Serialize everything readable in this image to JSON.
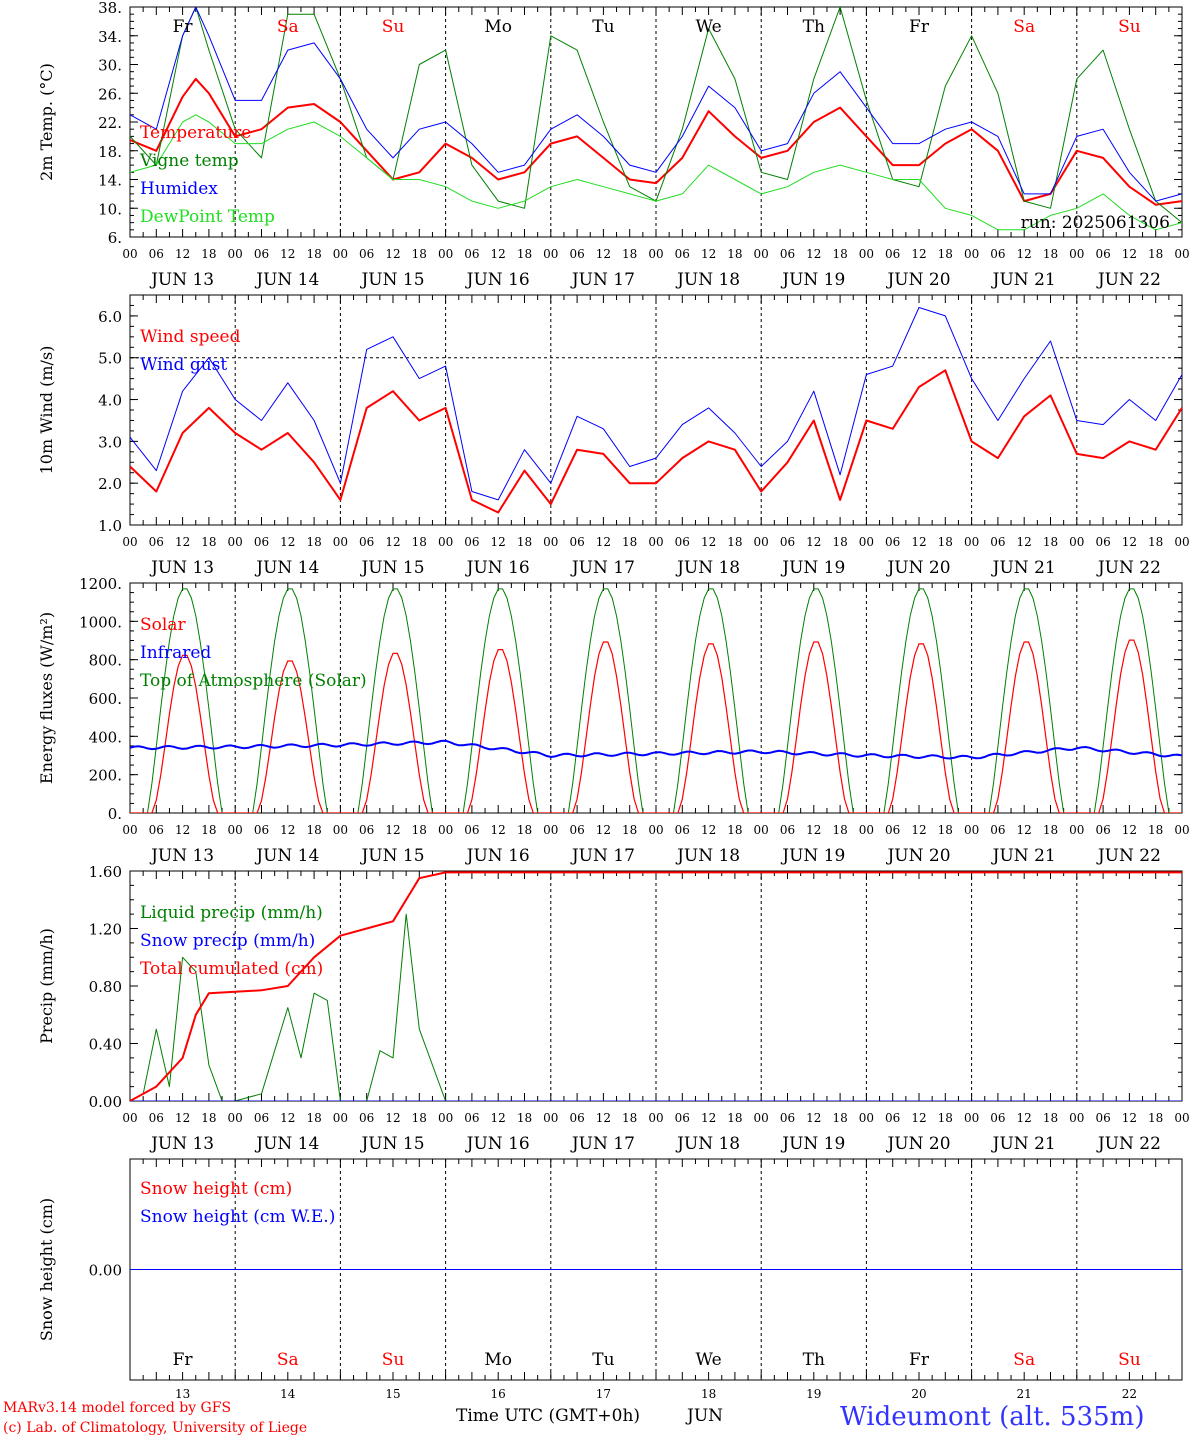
{
  "colors": {
    "red": "#ff0000",
    "green": "#008000",
    "blue": "#0000ff",
    "lime": "#22dd22",
    "black": "#000000"
  },
  "days": [
    {
      "abbr": "Fr",
      "weekend": false,
      "date": "JUN 13",
      "num": "13"
    },
    {
      "abbr": "Sa",
      "weekend": true,
      "date": "JUN 14",
      "num": "14"
    },
    {
      "abbr": "Su",
      "weekend": true,
      "date": "JUN 15",
      "num": "15"
    },
    {
      "abbr": "Mo",
      "weekend": false,
      "date": "JUN 16",
      "num": "16"
    },
    {
      "abbr": "Tu",
      "weekend": false,
      "date": "JUN 17",
      "num": "17"
    },
    {
      "abbr": "We",
      "weekend": false,
      "date": "JUN 18",
      "num": "18"
    },
    {
      "abbr": "Th",
      "weekend": false,
      "date": "JUN 19",
      "num": "19"
    },
    {
      "abbr": "Fr",
      "weekend": false,
      "date": "JUN 20",
      "num": "20"
    },
    {
      "abbr": "Sa",
      "weekend": true,
      "date": "JUN 21",
      "num": "21"
    },
    {
      "abbr": "Su",
      "weekend": true,
      "date": "JUN 22",
      "num": "22"
    }
  ],
  "hour_ticks": [
    "00",
    "06",
    "12",
    "18"
  ],
  "footer": {
    "credit1": "MARv3.14 model forced by GFS",
    "credit2": "(c) Lab. of Climatology, University of Liege",
    "xlabel": "Time UTC (GMT+0h)",
    "month": "JUN",
    "station": "Wideumont (alt. 535m)"
  },
  "chart_data": [
    {
      "type": "line",
      "ylabel": "2m Temp. (°C)",
      "ylim": [
        6,
        38
      ],
      "yticks": [
        "6.",
        "10.",
        "14.",
        "18.",
        "22.",
        "26.",
        "30.",
        "34.",
        "38."
      ],
      "run_label": "run: 2025061306",
      "x_unit": "hours since JUN 13 00 UTC",
      "series": [
        {
          "name": "Temperature",
          "color": "#ff0000",
          "width": 2,
          "x": [
            0,
            6,
            12,
            15,
            18,
            24,
            30,
            36,
            42,
            48,
            54,
            60,
            66,
            72,
            78,
            84,
            90,
            96,
            102,
            108,
            114,
            120,
            126,
            132,
            138,
            144,
            150,
            156,
            162,
            168,
            174,
            180,
            186,
            192,
            198,
            204,
            210,
            216,
            222,
            228,
            234,
            240
          ],
          "y": [
            19.5,
            18,
            25.5,
            28,
            26,
            20,
            21,
            24,
            24.5,
            22,
            18,
            14,
            15,
            19,
            17,
            14,
            15,
            19,
            20,
            17,
            14,
            13.5,
            17,
            23.5,
            20,
            17,
            18,
            22,
            24,
            20,
            16,
            16,
            19,
            21,
            18,
            11,
            12,
            18,
            17,
            13,
            10.5,
            11
          ]
        },
        {
          "name": "Vigne temp",
          "color": "#008000",
          "width": 1,
          "x": [
            0,
            6,
            12,
            15,
            18,
            24,
            30,
            36,
            42,
            48,
            54,
            60,
            66,
            72,
            78,
            84,
            90,
            96,
            102,
            108,
            114,
            120,
            126,
            132,
            138,
            144,
            150,
            156,
            162,
            168,
            174,
            180,
            186,
            192,
            198,
            204,
            210,
            216,
            222,
            228,
            234,
            240
          ],
          "y": [
            20,
            16,
            34,
            38,
            32,
            21,
            17,
            37,
            37,
            28,
            17,
            14,
            30,
            32,
            16,
            11,
            10,
            34,
            32,
            22,
            13,
            11,
            21,
            35,
            28,
            15,
            14,
            28,
            38,
            25,
            14,
            13,
            27,
            34,
            26,
            11,
            10,
            28,
            32,
            21,
            11,
            8
          ]
        },
        {
          "name": "Humidex",
          "color": "#0000ff",
          "width": 1,
          "x": [
            0,
            6,
            12,
            15,
            18,
            24,
            30,
            36,
            42,
            48,
            54,
            60,
            66,
            72,
            78,
            84,
            90,
            96,
            102,
            108,
            114,
            120,
            126,
            132,
            138,
            144,
            150,
            156,
            162,
            168,
            174,
            180,
            186,
            192,
            198,
            204,
            210,
            216,
            222,
            228,
            234,
            240
          ],
          "y": [
            23,
            21,
            34,
            38,
            34,
            25,
            25,
            32,
            33,
            28,
            21,
            17,
            21,
            22,
            19,
            15,
            16,
            21,
            23,
            20,
            16,
            15,
            20,
            27,
            24,
            18,
            19,
            26,
            29,
            24,
            19,
            19,
            21,
            22,
            20,
            12,
            12,
            20,
            21,
            15,
            11,
            12
          ]
        },
        {
          "name": "DewPoint Temp",
          "color": "#22dd22",
          "width": 1,
          "x": [
            0,
            6,
            12,
            15,
            18,
            24,
            30,
            36,
            42,
            48,
            54,
            60,
            66,
            72,
            78,
            84,
            90,
            96,
            102,
            108,
            114,
            120,
            126,
            132,
            138,
            144,
            150,
            156,
            162,
            168,
            174,
            180,
            186,
            192,
            198,
            204,
            210,
            216,
            222,
            228,
            234,
            240
          ],
          "y": [
            15,
            16,
            22,
            23,
            22,
            19,
            19,
            21,
            22,
            20,
            17,
            14,
            14,
            13,
            11,
            10,
            11,
            13,
            14,
            13,
            12,
            11,
            12,
            16,
            14,
            12,
            13,
            15,
            16,
            15,
            14,
            14,
            10,
            9,
            7,
            7,
            9,
            10,
            12,
            9,
            7,
            8
          ]
        }
      ]
    },
    {
      "type": "line",
      "ylabel": "10m Wind (m/s)",
      "ylim": [
        1,
        6.5
      ],
      "yticks": [
        "1.0",
        "2.0",
        "3.0",
        "4.0",
        "5.0",
        "6.0"
      ],
      "ref_line": 5.0,
      "x_unit": "hours since JUN 13 00 UTC",
      "series": [
        {
          "name": "Wind speed",
          "color": "#ff0000",
          "width": 2,
          "x": [
            0,
            6,
            12,
            18,
            24,
            30,
            36,
            42,
            48,
            54,
            60,
            66,
            72,
            78,
            84,
            90,
            96,
            102,
            108,
            114,
            120,
            126,
            132,
            138,
            144,
            150,
            156,
            162,
            168,
            174,
            180,
            186,
            192,
            198,
            204,
            210,
            216,
            222,
            228,
            234,
            240
          ],
          "y": [
            2.4,
            1.8,
            3.2,
            3.8,
            3.2,
            2.8,
            3.2,
            2.5,
            1.6,
            3.8,
            4.2,
            3.5,
            3.8,
            1.6,
            1.3,
            2.3,
            1.5,
            2.8,
            2.7,
            2.0,
            2.0,
            2.6,
            3.0,
            2.8,
            1.8,
            2.5,
            3.5,
            1.6,
            3.5,
            3.3,
            4.3,
            4.7,
            3.0,
            2.6,
            3.6,
            4.1,
            2.7,
            2.6,
            3.0,
            2.8,
            3.8
          ]
        },
        {
          "name": "Wind gust",
          "color": "#0000ff",
          "width": 1,
          "x": [
            0,
            6,
            12,
            18,
            24,
            30,
            36,
            42,
            48,
            54,
            60,
            66,
            72,
            78,
            84,
            90,
            96,
            102,
            108,
            114,
            120,
            126,
            132,
            138,
            144,
            150,
            156,
            162,
            168,
            174,
            180,
            186,
            192,
            198,
            204,
            210,
            216,
            222,
            228,
            234,
            240
          ],
          "y": [
            3.1,
            2.3,
            4.2,
            5.0,
            4.0,
            3.5,
            4.4,
            3.5,
            2.0,
            5.2,
            5.5,
            4.5,
            4.8,
            1.8,
            1.6,
            2.8,
            2.0,
            3.6,
            3.3,
            2.4,
            2.6,
            3.4,
            3.8,
            3.2,
            2.4,
            3.0,
            4.2,
            2.2,
            4.6,
            4.8,
            6.2,
            6.0,
            4.5,
            3.5,
            4.5,
            5.4,
            3.5,
            3.4,
            4.0,
            3.5,
            4.6
          ]
        }
      ]
    },
    {
      "type": "line",
      "ylabel": "Energy fluxes (W/m²)",
      "ylim": [
        0,
        1200
      ],
      "yticks": [
        "0.",
        "200.",
        "400.",
        "600.",
        "800.",
        "1000.",
        "1200."
      ],
      "solar_peaks": [
        830,
        800,
        840,
        860,
        900,
        890,
        900,
        890,
        900,
        910
      ],
      "toa_peak": 1175,
      "infrared": {
        "x": [
          0,
          24,
          48,
          72,
          96,
          120,
          144,
          168,
          192,
          216,
          240
        ],
        "y": [
          340,
          345,
          355,
          370,
          300,
          310,
          320,
          300,
          290,
          340,
          295
        ]
      },
      "x_unit": "hours since JUN 13 00 UTC",
      "series": [
        {
          "name": "Solar",
          "color": "#ff0000",
          "width": 1
        },
        {
          "name": "Infrared",
          "color": "#0000ff",
          "width": 2
        },
        {
          "name": "Top of Atmosphere (Solar)",
          "color": "#008000",
          "width": 1
        }
      ]
    },
    {
      "type": "line",
      "ylabel": "Precip (mm/h)",
      "ylim": [
        0,
        1.6
      ],
      "yticks": [
        "0.00",
        "0.40",
        "0.80",
        "1.20",
        "1.60"
      ],
      "x_unit": "hours since JUN 13 00 UTC",
      "series": [
        {
          "name": "Liquid precip (mm/h)",
          "color": "#008000",
          "width": 1,
          "x": [
            0,
            3,
            6,
            9,
            12,
            15,
            18,
            21,
            24,
            30,
            36,
            39,
            42,
            45,
            48,
            54,
            57,
            60,
            63,
            66,
            72,
            240
          ],
          "y": [
            0,
            0.05,
            0.5,
            0.1,
            1.0,
            0.9,
            0.25,
            0,
            0,
            0.05,
            0.65,
            0.3,
            0.75,
            0.7,
            0,
            0,
            0.35,
            0.3,
            1.3,
            0.5,
            0,
            0
          ]
        },
        {
          "name": "Snow precip (mm/h)",
          "color": "#0000ff",
          "width": 1,
          "x": [
            0,
            240
          ],
          "y": [
            0,
            0
          ]
        },
        {
          "name": "Total cumulated (cm)",
          "color": "#ff0000",
          "width": 2,
          "x": [
            0,
            6,
            12,
            15,
            18,
            24,
            30,
            36,
            42,
            48,
            54,
            60,
            66,
            72,
            240
          ],
          "y": [
            0,
            0.1,
            0.3,
            0.6,
            0.75,
            0.76,
            0.77,
            0.8,
            1.0,
            1.15,
            1.2,
            1.25,
            1.55,
            1.59,
            1.59
          ]
        }
      ]
    },
    {
      "type": "line",
      "ylabel": "Snow height (cm)",
      "ylim": [
        -1,
        1
      ],
      "yticks": [
        "0.00"
      ],
      "x_unit": "hours since JUN 13 00 UTC",
      "series": [
        {
          "name": "Snow height (cm)",
          "color": "#ff0000",
          "width": 1,
          "x": [
            0,
            240
          ],
          "y": [
            0,
            0
          ]
        },
        {
          "name": "Snow height (cm W.E.)",
          "color": "#0000ff",
          "width": 1,
          "x": [
            0,
            240
          ],
          "y": [
            0,
            0
          ]
        }
      ]
    }
  ]
}
